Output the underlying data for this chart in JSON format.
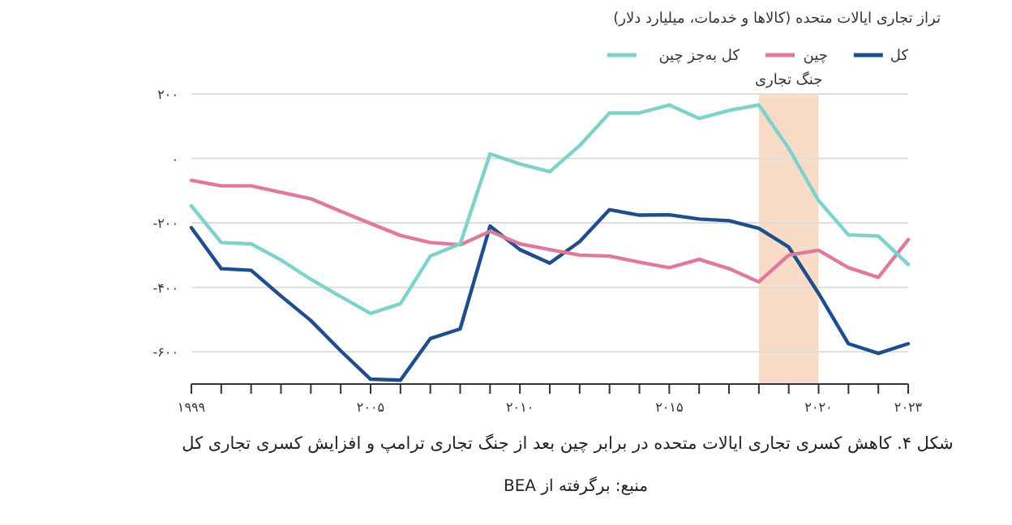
{
  "chart_data": {
    "type": "line",
    "ylabel": "تراز تجاری ایالات متحده (کالاها و خدمات، میلیارد دلار)",
    "x": [
      1999,
      2000,
      2001,
      2002,
      2003,
      2004,
      2005,
      2006,
      2007,
      2008,
      2009,
      2010,
      2011,
      2012,
      2013,
      2014,
      2015,
      2016,
      2017,
      2018,
      2019,
      2020,
      2021,
      2022,
      2023
    ],
    "series": [
      {
        "name": "کل",
        "color": "#1f4e8c",
        "values": [
          -215,
          -342,
          -347,
          -427,
          -503,
          -597,
          -685,
          -688,
          -559,
          -529,
          -210,
          -283,
          -325,
          -258,
          -159,
          -176,
          -175,
          -188,
          -193,
          -217,
          -275,
          -419,
          -575,
          -605,
          -575
        ]
      },
      {
        "name": "چین",
        "color": "#e07a9b",
        "values": [
          -68,
          -85,
          -85,
          -105,
          -125,
          -164,
          -202,
          -239,
          -261,
          -268,
          -226,
          -265,
          -283,
          -300,
          -303,
          -322,
          -339,
          -313,
          -342,
          -383,
          -300,
          -285,
          -339,
          -369,
          -252
        ]
      },
      {
        "name": "کل به‌جز چین",
        "color": "#7fd1cc",
        "values": [
          -147,
          -261,
          -265,
          -315,
          -375,
          -429,
          -481,
          -451,
          -303,
          -265,
          14,
          -17,
          -41,
          40,
          141,
          141,
          166,
          124,
          149,
          166,
          31,
          -131,
          -237,
          -241,
          -329
        ]
      }
    ],
    "xlim": [
      1999,
      2023
    ],
    "ylim": [
      -700,
      200
    ],
    "xticks": [
      {
        "value": 1999,
        "label": "۱۹۹۹"
      },
      {
        "value": 2000,
        "label": null
      },
      {
        "value": 2001,
        "label": null
      },
      {
        "value": 2002,
        "label": null
      },
      {
        "value": 2003,
        "label": null
      },
      {
        "value": 2004,
        "label": null
      },
      {
        "value": 2005,
        "label": "۲۰۰۵"
      },
      {
        "value": 2006,
        "label": null
      },
      {
        "value": 2007,
        "label": null
      },
      {
        "value": 2008,
        "label": null
      },
      {
        "value": 2009,
        "label": null
      },
      {
        "value": 2010,
        "label": "۲۰۱۰"
      },
      {
        "value": 2011,
        "label": null
      },
      {
        "value": 2012,
        "label": null
      },
      {
        "value": 2013,
        "label": null
      },
      {
        "value": 2014,
        "label": null
      },
      {
        "value": 2015,
        "label": "۲۰۱۵"
      },
      {
        "value": 2016,
        "label": null
      },
      {
        "value": 2017,
        "label": null
      },
      {
        "value": 2018,
        "label": null
      },
      {
        "value": 2019,
        "label": null
      },
      {
        "value": 2020,
        "label": "۲۰۲۰"
      },
      {
        "value": 2021,
        "label": null
      },
      {
        "value": 2022,
        "label": null
      },
      {
        "value": 2023,
        "label": "۲۰۲۳"
      }
    ],
    "yticks": [
      {
        "value": 200,
        "label": "۲۰۰"
      },
      {
        "value": 0,
        "label": "۰"
      },
      {
        "value": -200,
        "label": "-۲۰۰"
      },
      {
        "value": -400,
        "label": "-۴۰۰"
      },
      {
        "value": -600,
        "label": "-۶۰۰"
      }
    ],
    "bands": [
      {
        "axis": "x",
        "from": 2018,
        "to": 2020,
        "label": "جنگ تجاری",
        "color": "#f9dcc8"
      }
    ],
    "annotations": [
      "شکل ۴. کاهش کسری تجاری ایالات متحده در برابر چین بعد از جنگ تجاری ترامپ و افزایش کسری تجاری کل",
      "منبع: برگرفته از BEA"
    ],
    "grid": "y",
    "legend": "top right",
    "line_style": "solid",
    "marker": "none"
  }
}
